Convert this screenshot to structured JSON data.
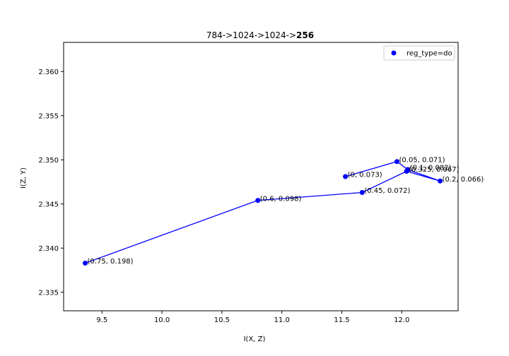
{
  "chart_data": {
    "type": "line",
    "title_prefix": "784->1024->1024->",
    "title_bold": "256",
    "xlabel": "I(X, Z)",
    "ylabel": "I(Z, Y)",
    "xlim": [
      9.18,
      12.47
    ],
    "ylim": [
      2.3329,
      2.3633
    ],
    "xticks": [
      9.5,
      10.0,
      10.5,
      11.0,
      11.5,
      12.0
    ],
    "xtick_labels": [
      "9.5",
      "10.0",
      "10.5",
      "11.0",
      "11.5",
      "12.0"
    ],
    "yticks": [
      2.335,
      2.34,
      2.345,
      2.35,
      2.355,
      2.36
    ],
    "ytick_labels": [
      "2.335",
      "2.340",
      "2.345",
      "2.350",
      "2.355",
      "2.360"
    ],
    "grid": false,
    "legend_position": "top-right",
    "series": [
      {
        "name": "reg_type=do",
        "color": "#0000ff",
        "points": [
          {
            "x": 11.53,
            "y": 2.3481,
            "label": "(0, 0.073)"
          },
          {
            "x": 11.96,
            "y": 2.3498,
            "label": "(0.05, 0.071)"
          },
          {
            "x": 12.05,
            "y": 2.3489,
            "label": "(0.1, 0.082)"
          },
          {
            "x": 12.32,
            "y": 2.3476,
            "label": "(0.2, 0.066)"
          },
          {
            "x": 12.04,
            "y": 2.3487,
            "label": "(0.325, 0.067)"
          },
          {
            "x": 11.67,
            "y": 2.3463,
            "label": "(0.45, 0.072)"
          },
          {
            "x": 10.8,
            "y": 2.3454,
            "label": "(0.6, 0.098)"
          },
          {
            "x": 9.36,
            "y": 2.3383,
            "label": "(0.75, 0.198)"
          }
        ]
      }
    ]
  }
}
